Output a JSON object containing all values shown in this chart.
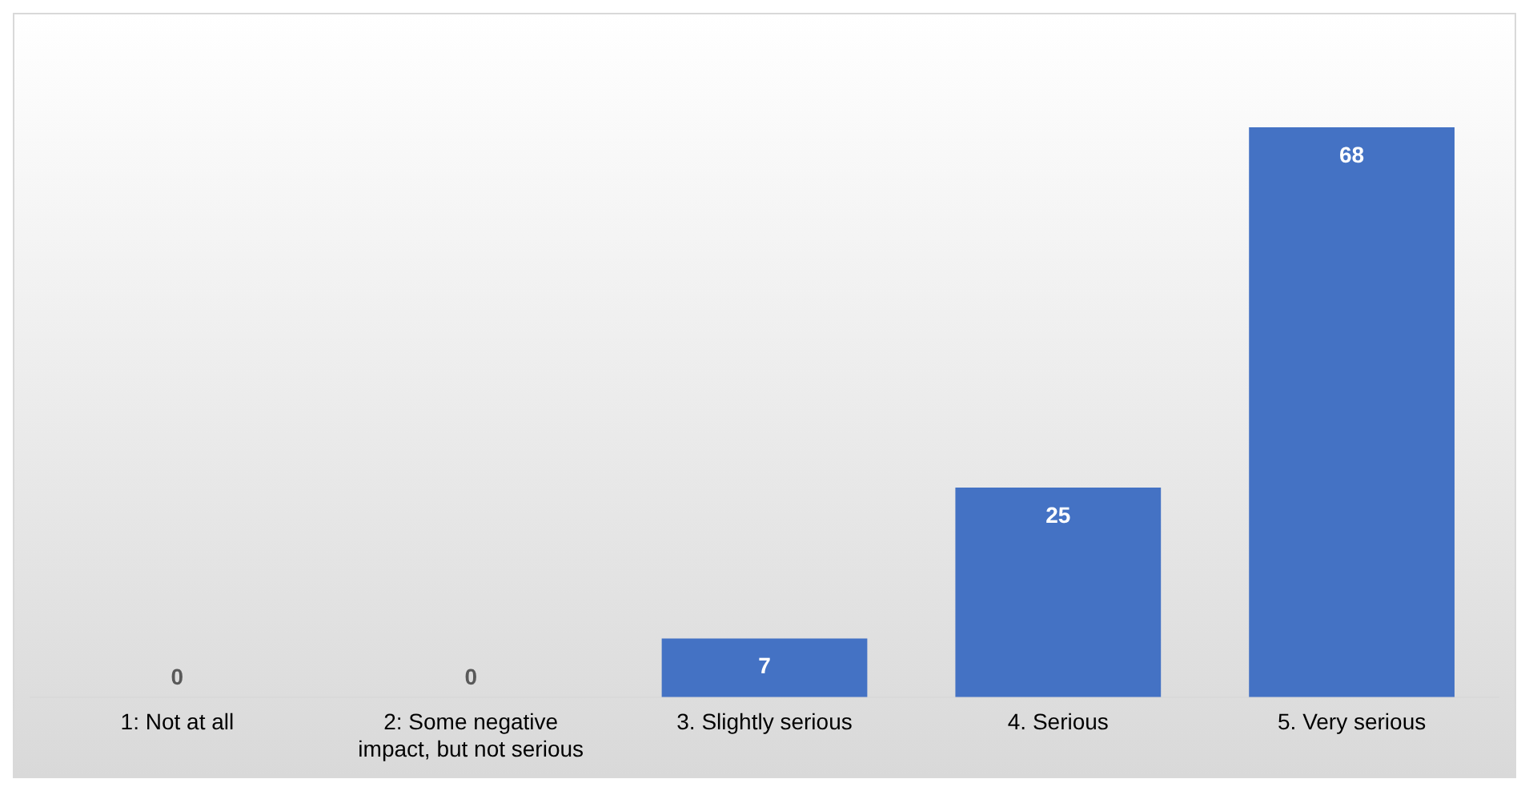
{
  "chart_data": {
    "type": "bar",
    "categories": [
      "1: Not at all",
      "2: Some negative impact, but not serious",
      "3. Slightly serious",
      "4. Serious",
      "5. Very serious"
    ],
    "values": [
      0,
      0,
      7,
      25,
      68
    ],
    "color": "#4472c4",
    "data_labels": true,
    "grid": false,
    "legend": false
  }
}
